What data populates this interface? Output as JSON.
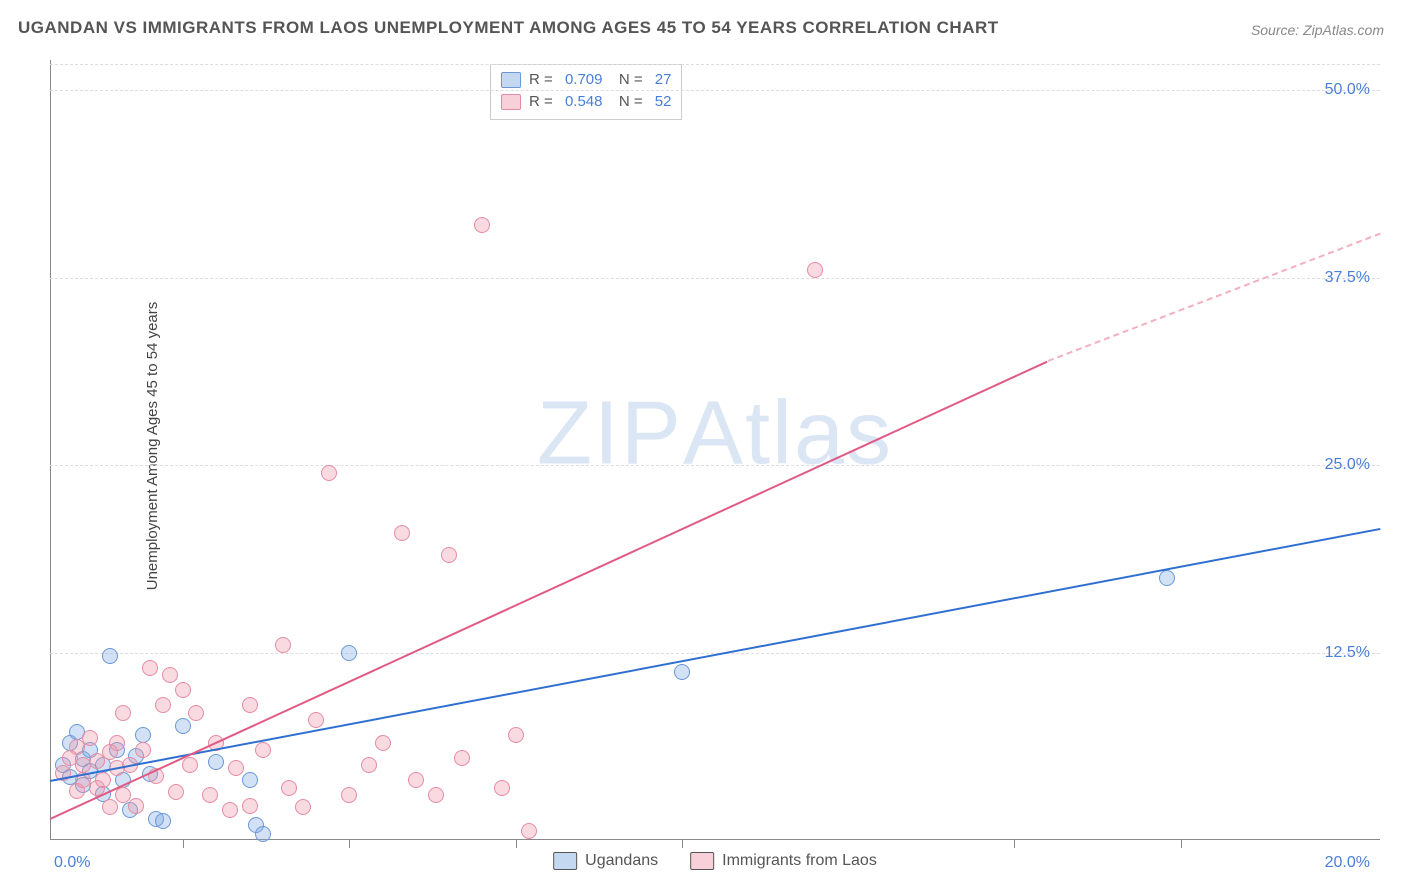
{
  "title": "UGANDAN VS IMMIGRANTS FROM LAOS UNEMPLOYMENT AMONG AGES 45 TO 54 YEARS CORRELATION CHART",
  "source": "Source: ZipAtlas.com",
  "ylabel": "Unemployment Among Ages 45 to 54 years",
  "watermark_a": "ZIP",
  "watermark_b": "Atlas",
  "chart": {
    "type": "scatter",
    "xlim": [
      0,
      20
    ],
    "ylim": [
      0,
      52
    ],
    "xtick_min_label": "0.0%",
    "xtick_max_label": "20.0%",
    "ytick_labels": [
      "12.5%",
      "25.0%",
      "37.5%",
      "50.0%"
    ],
    "ytick_values": [
      12.5,
      25.0,
      37.5,
      50.0
    ],
    "xtick_marks": [
      2,
      4.5,
      7,
      9.5,
      14.5,
      17
    ],
    "background_color": "#ffffff",
    "grid_color": "#dddddd",
    "axis_color": "#888888",
    "value_color": "#4a7fd8",
    "series": [
      {
        "name": "Ugandans",
        "color_fill": "rgba(127,168,226,0.35)",
        "color_stroke": "#6a99d8",
        "trend_color": "#2f6fd0",
        "R": "0.709",
        "N": "27",
        "trend": {
          "x1": 0,
          "y1": 4.0,
          "x2": 20,
          "y2": 20.8
        },
        "points": [
          [
            0.2,
            5.0
          ],
          [
            0.3,
            6.5
          ],
          [
            0.3,
            4.2
          ],
          [
            0.4,
            7.2
          ],
          [
            0.5,
            3.7
          ],
          [
            0.5,
            5.4
          ],
          [
            0.6,
            4.6
          ],
          [
            0.6,
            6.0
          ],
          [
            0.8,
            5.0
          ],
          [
            0.8,
            3.1
          ],
          [
            0.9,
            12.3
          ],
          [
            1.0,
            6.0
          ],
          [
            1.1,
            4.0
          ],
          [
            1.2,
            2.0
          ],
          [
            1.3,
            5.6
          ],
          [
            1.4,
            7.0
          ],
          [
            1.5,
            4.4
          ],
          [
            1.6,
            1.4
          ],
          [
            1.7,
            1.3
          ],
          [
            2.0,
            7.6
          ],
          [
            2.5,
            5.2
          ],
          [
            3.0,
            4.0
          ],
          [
            3.1,
            1.0
          ],
          [
            3.2,
            0.4
          ],
          [
            4.5,
            12.5
          ],
          [
            9.5,
            11.2
          ],
          [
            16.8,
            17.5
          ]
        ]
      },
      {
        "name": "Immigrants from Laos",
        "color_fill": "rgba(240,150,170,0.35)",
        "color_stroke": "#e58ca3",
        "trend_color": "#e05a84",
        "R": "0.548",
        "N": "52",
        "trend_solid": {
          "x1": 0,
          "y1": 1.5,
          "x2": 15.0,
          "y2": 32.0
        },
        "trend_dash": {
          "x1": 15.0,
          "y1": 32.0,
          "x2": 20,
          "y2": 40.5
        },
        "points": [
          [
            0.2,
            4.5
          ],
          [
            0.3,
            5.5
          ],
          [
            0.4,
            3.3
          ],
          [
            0.4,
            6.2
          ],
          [
            0.5,
            5.0
          ],
          [
            0.5,
            4.0
          ],
          [
            0.6,
            6.8
          ],
          [
            0.7,
            3.5
          ],
          [
            0.7,
            5.3
          ],
          [
            0.8,
            4.0
          ],
          [
            0.9,
            2.2
          ],
          [
            0.9,
            5.9
          ],
          [
            1.0,
            4.8
          ],
          [
            1.0,
            6.5
          ],
          [
            1.1,
            3.0
          ],
          [
            1.1,
            8.5
          ],
          [
            1.2,
            5.0
          ],
          [
            1.3,
            2.3
          ],
          [
            1.4,
            6.0
          ],
          [
            1.5,
            11.5
          ],
          [
            1.6,
            4.3
          ],
          [
            1.7,
            9.0
          ],
          [
            1.8,
            11.0
          ],
          [
            1.9,
            3.2
          ],
          [
            2.0,
            10.0
          ],
          [
            2.1,
            5.0
          ],
          [
            2.2,
            8.5
          ],
          [
            2.4,
            3.0
          ],
          [
            2.5,
            6.5
          ],
          [
            2.7,
            2.0
          ],
          [
            2.8,
            4.8
          ],
          [
            3.0,
            9.0
          ],
          [
            3.0,
            2.3
          ],
          [
            3.2,
            6.0
          ],
          [
            3.5,
            13.0
          ],
          [
            3.6,
            3.5
          ],
          [
            3.8,
            2.2
          ],
          [
            4.0,
            8.0
          ],
          [
            4.2,
            24.5
          ],
          [
            4.5,
            3.0
          ],
          [
            4.8,
            5.0
          ],
          [
            5.0,
            6.5
          ],
          [
            5.3,
            20.5
          ],
          [
            5.5,
            4.0
          ],
          [
            5.8,
            3.0
          ],
          [
            6.0,
            19.0
          ],
          [
            6.2,
            5.5
          ],
          [
            6.5,
            41.0
          ],
          [
            6.8,
            3.5
          ],
          [
            7.0,
            7.0
          ],
          [
            7.2,
            0.6
          ],
          [
            11.5,
            38.0
          ]
        ]
      }
    ],
    "legend_bottom": [
      {
        "label": "Ugandans",
        "sw": "blue"
      },
      {
        "label": "Immigrants from Laos",
        "sw": "pink"
      }
    ]
  }
}
